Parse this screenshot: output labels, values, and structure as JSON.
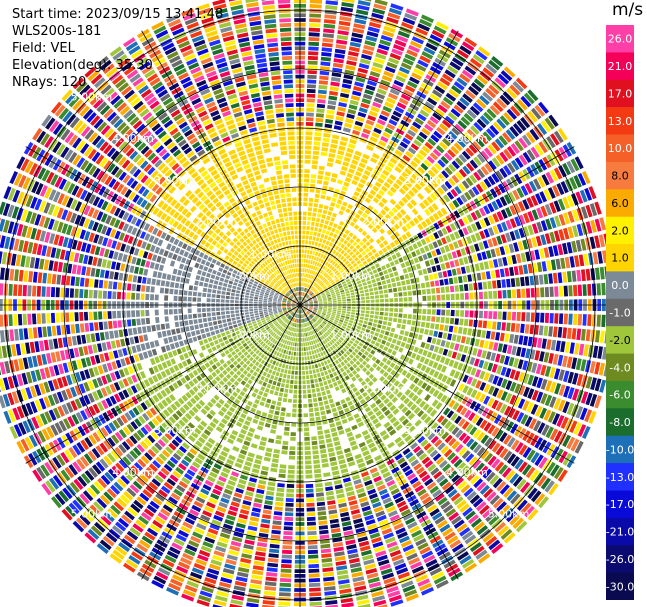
{
  "header": {
    "start_time": "Start time: 2023/09/15 13:41:48",
    "station": "WLS200s-181",
    "field": "Field: VEL",
    "elevation": "Elevation(deg): 35.30",
    "nrays": "NRays: 120"
  },
  "colorbar": {
    "unit": "m/s",
    "bins": [
      {
        "label": "26.0",
        "color": "#ff3fa8"
      },
      {
        "label": "21.0",
        "color": "#f50058"
      },
      {
        "label": "17.0",
        "color": "#e11020"
      },
      {
        "label": "13.0",
        "color": "#f43a12"
      },
      {
        "label": "10.0",
        "color": "#f46028"
      },
      {
        "label": "8.0",
        "color": "#f77a3e"
      },
      {
        "label": "6.0",
        "color": "#fbaa00"
      },
      {
        "label": "2.0",
        "color": "#fff100"
      },
      {
        "label": "1.0",
        "color": "#ffd400"
      },
      {
        "label": "0.0",
        "color": "#7c8996"
      },
      {
        "label": "-1.0",
        "color": "#6a6a6a"
      },
      {
        "label": "-2.0",
        "color": "#a0c63c"
      },
      {
        "label": "-4.0",
        "color": "#6e8b22"
      },
      {
        "label": "-6.0",
        "color": "#3a8c2e"
      },
      {
        "label": "-8.0",
        "color": "#1a6d2c"
      },
      {
        "label": "-10.0",
        "color": "#1d6fb8"
      },
      {
        "label": "-13.0",
        "color": "#2030ff"
      },
      {
        "label": "-17.0",
        "color": "#0a0ad8"
      },
      {
        "label": "-21.0",
        "color": "#0a0aa8"
      },
      {
        "label": "-26.0",
        "color": "#0a0a70"
      },
      {
        "label": "-30.0",
        "color": "#0a0a50"
      }
    ]
  },
  "chart_data": {
    "type": "heatmap",
    "projection": "polar-ppi",
    "field": "VEL",
    "units": "m/s",
    "n_rays": 120,
    "range_rings_km": [
      1,
      2,
      3,
      4,
      5
    ],
    "spoke_interval_deg": 30,
    "ring_labels": [
      {
        "text": "1.00km",
        "km": 1,
        "az": [
          -60,
          60,
          120,
          -120,
          -30
        ]
      },
      {
        "text": "2.00km",
        "km": 2,
        "az": [
          -45,
          45,
          135,
          -135
        ]
      },
      {
        "text": "3.00km",
        "km": 3,
        "az": [
          -45,
          45,
          135,
          -135
        ]
      },
      {
        "text": "4.00km",
        "km": 4,
        "az": [
          -45,
          45,
          135,
          -135
        ]
      },
      {
        "text": "5.00km",
        "km": 5,
        "az": [
          -45,
          135,
          -135
        ]
      }
    ],
    "description_ranges": {
      "inner_mixed_km": [
        0.0,
        0.25
      ],
      "coherent_km": [
        0.25,
        3.0
      ],
      "noise_km": [
        3.0,
        5.3
      ]
    },
    "sectors": [
      {
        "az_from": 300,
        "az_to": 60,
        "km_from": 0.3,
        "km_to": 3.0,
        "velocity": 1.5,
        "label": "positive (yellow)"
      },
      {
        "az_from": 60,
        "az_to": 110,
        "km_from": 0.3,
        "km_to": 2.2,
        "velocity": -1.5,
        "label": "negative (green)"
      },
      {
        "az_from": 110,
        "az_to": 250,
        "km_from": 0.3,
        "km_to": 3.0,
        "velocity": -2.0,
        "label": "negative (green)"
      },
      {
        "az_from": 250,
        "az_to": 300,
        "km_from": 0.3,
        "km_to": 2.6,
        "velocity": 0.0,
        "label": "near zero (gray)"
      }
    ]
  }
}
